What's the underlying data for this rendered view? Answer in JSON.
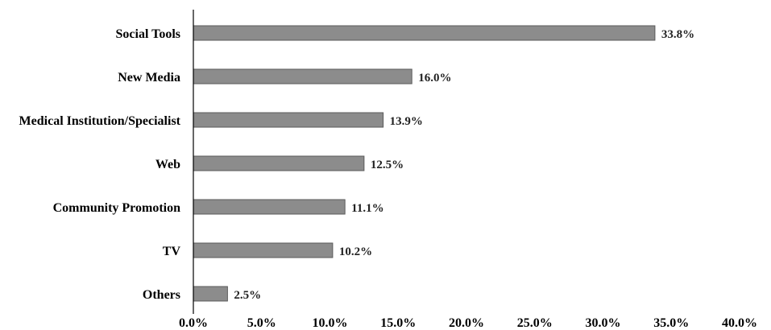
{
  "chart_data": {
    "type": "bar",
    "orientation": "horizontal",
    "categories": [
      "Social Tools",
      "New Media",
      "Medical Institution/Specialist",
      "Web",
      "Community Promotion",
      "TV",
      "Others"
    ],
    "values": [
      33.8,
      16.0,
      13.9,
      12.5,
      11.1,
      10.2,
      2.5
    ],
    "data_labels": [
      "33.8%",
      "16.0%",
      "13.9%",
      "12.5%",
      "11.1%",
      "10.2%",
      "2.5%"
    ],
    "xlim": [
      0,
      40
    ],
    "x_ticks": [
      0,
      5,
      10,
      15,
      20,
      25,
      30,
      35,
      40
    ],
    "x_tick_labels": [
      "0.0%",
      "5.0%",
      "10.0%",
      "15.0%",
      "20.0%",
      "25.0%",
      "30.0%",
      "35.0%",
      "40.0%"
    ],
    "grid": false,
    "legend": "none",
    "colors": {
      "bar": "#8c8c8c",
      "bar_edge": "#5a5a5a",
      "axis": "#000000"
    }
  }
}
